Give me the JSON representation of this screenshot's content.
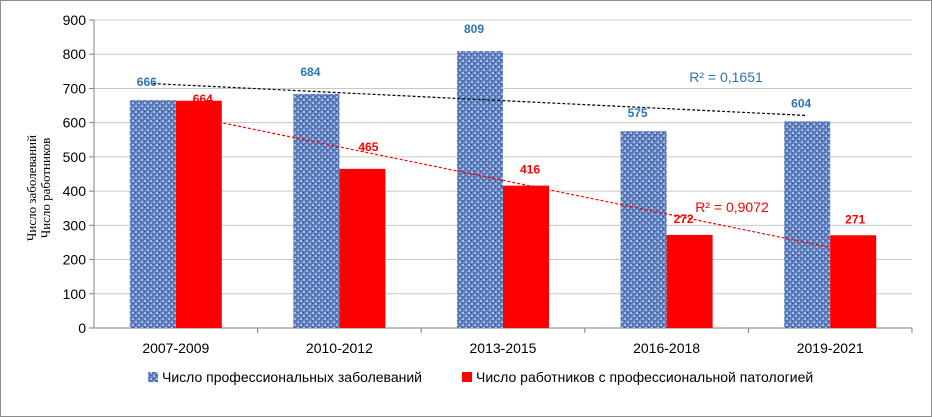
{
  "chart_data": {
    "type": "bar",
    "categories": [
      "2007-2009",
      "2010-2012",
      "2013-2015",
      "2016-2018",
      "2019-2021"
    ],
    "series": [
      {
        "name": "Число профессиональных заболеваний",
        "values": [
          666,
          684,
          809,
          575,
          604
        ],
        "color": "#4a6fb0",
        "label_color": "#2e75b6"
      },
      {
        "name": "Число работников с профессиональной патологией",
        "values": [
          664,
          465,
          416,
          272,
          271
        ],
        "color": "#ff0000",
        "label_color": "#ff0000"
      }
    ],
    "ylabel_lines": [
      "Число заболеваний",
      "Число работников"
    ],
    "ylim": [
      0,
      900
    ],
    "yticks": [
      0,
      100,
      200,
      300,
      400,
      500,
      600,
      700,
      800,
      900
    ],
    "grid": true,
    "legend": "bottom",
    "trendlines": [
      {
        "series": 0,
        "r2_label": "R² = 0,1651",
        "color": "#000000",
        "label_color": "#2e75b6"
      },
      {
        "series": 1,
        "r2_label": "R² = 0,9072",
        "color": "#ff0000",
        "label_color": "#ff0000"
      }
    ]
  }
}
